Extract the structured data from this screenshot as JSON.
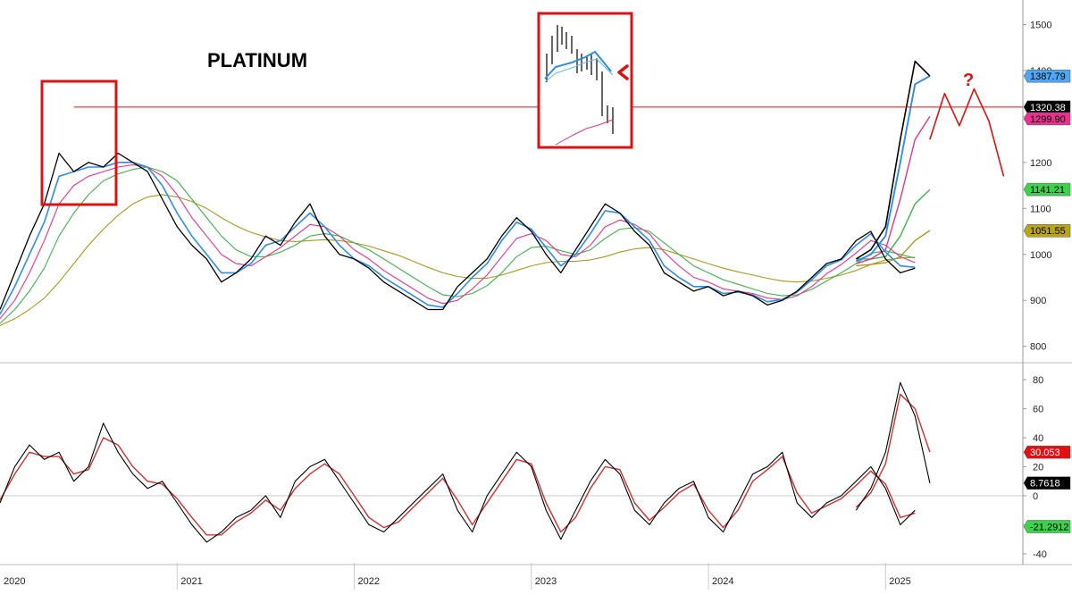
{
  "chart_data": [
    {
      "type": "line",
      "panel": "price",
      "title": "PLATINUM",
      "xlabel": "",
      "ylabel": "",
      "ylim": [
        780,
        1530
      ],
      "x_tick_labels": [
        "2020",
        "2021",
        "2022",
        "2023",
        "2024",
        "2025"
      ],
      "y_tick_labels": [
        "800",
        "900",
        "1000",
        "1100",
        "1200",
        "1300",
        "1400",
        "1500"
      ],
      "grid": false,
      "x": [
        "2020-01",
        "2020-02",
        "2020-03",
        "2020-04",
        "2020-05",
        "2020-06",
        "2020-07",
        "2020-08",
        "2020-09",
        "2020-10",
        "2020-11",
        "2020-12",
        "2021-01",
        "2021-02",
        "2021-03",
        "2021-04",
        "2021-05",
        "2021-06",
        "2021-07",
        "2021-08",
        "2021-09",
        "2021-10",
        "2021-11",
        "2021-12",
        "2022-01",
        "2022-02",
        "2022-03",
        "2022-04",
        "2022-05",
        "2022-06",
        "2022-07",
        "2022-08",
        "2022-09",
        "2022-10",
        "2022-11",
        "2022-12",
        "2023-01",
        "2023-02",
        "2023-03",
        "2023-04",
        "2023-05",
        "2023-06",
        "2023-07",
        "2023-08",
        "2023-09",
        "2023-10",
        "2023-11",
        "2023-12",
        "2024-01",
        "2024-02",
        "2024-03",
        "2024-04",
        "2024-05",
        "2024-06",
        "2024-07",
        "2024-08",
        "2024-09",
        "2024-10",
        "2024-11",
        "2024-12",
        "2025-01",
        "2025-02",
        "2025-03"
      ],
      "series": [
        {
          "color": "#000000",
          "values": [
            880,
            960,
            1040,
            1110,
            1220,
            1180,
            1200,
            1190,
            1220,
            1200,
            1180,
            1120,
            1060,
            1020,
            990,
            940,
            960,
            990,
            1040,
            1020,
            1070,
            1110,
            1040,
            1000,
            990,
            970,
            940,
            920,
            900,
            880,
            880,
            930,
            960,
            990,
            1040,
            1080,
            1050,
            1000,
            960,
            1010,
            1060,
            1110,
            1090,
            1050,
            1020,
            960,
            940,
            920,
            930,
            910,
            920,
            910,
            890,
            900,
            920,
            950,
            980,
            990,
            1030,
            1050,
            990,
            960,
            970
          ]
        },
        {
          "color": "#2e8ee6",
          "values": [
            870,
            930,
            1000,
            1070,
            1170,
            1180,
            1190,
            1190,
            1200,
            1200,
            1190,
            1150,
            1090,
            1040,
            1000,
            960,
            960,
            980,
            1020,
            1030,
            1060,
            1090,
            1060,
            1020,
            990,
            975,
            950,
            930,
            910,
            890,
            885,
            915,
            950,
            980,
            1030,
            1070,
            1055,
            1015,
            975,
            1000,
            1045,
            1095,
            1090,
            1060,
            1030,
            975,
            950,
            930,
            930,
            915,
            918,
            912,
            897,
            902,
            918,
            945,
            975,
            988,
            1020,
            1045,
            1005,
            975,
            972
          ]
        },
        {
          "color": "#e8328c",
          "values": [
            860,
            900,
            960,
            1030,
            1110,
            1150,
            1170,
            1180,
            1190,
            1195,
            1190,
            1170,
            1130,
            1080,
            1040,
            1000,
            980,
            975,
            995,
            1015,
            1040,
            1065,
            1060,
            1040,
            1010,
            990,
            965,
            945,
            925,
            905,
            893,
            900,
            925,
            955,
            995,
            1035,
            1045,
            1030,
            1000,
            995,
            1020,
            1060,
            1075,
            1065,
            1045,
            1005,
            975,
            950,
            940,
            925,
            920,
            915,
            905,
            902,
            910,
            930,
            958,
            978,
            1003,
            1030,
            1020,
            995,
            982
          ]
        },
        {
          "color": "#3cb44b",
          "values": [
            850,
            880,
            920,
            970,
            1040,
            1090,
            1130,
            1160,
            1175,
            1185,
            1190,
            1180,
            1160,
            1120,
            1080,
            1040,
            1010,
            995,
            995,
            1005,
            1020,
            1040,
            1045,
            1040,
            1025,
            1010,
            990,
            970,
            950,
            930,
            912,
            908,
            915,
            932,
            960,
            995,
            1015,
            1018,
            1008,
            1000,
            1010,
            1035,
            1055,
            1058,
            1050,
            1025,
            1000,
            975,
            960,
            945,
            935,
            925,
            915,
            910,
            912,
            924,
            942,
            960,
            980,
            1002,
            1008,
            1000,
            992
          ]
        },
        {
          "color": "#a89a1a",
          "values": [
            845,
            860,
            880,
            905,
            940,
            980,
            1020,
            1055,
            1085,
            1110,
            1125,
            1130,
            1125,
            1115,
            1100,
            1080,
            1062,
            1048,
            1038,
            1030,
            1028,
            1030,
            1032,
            1030,
            1025,
            1018,
            1008,
            998,
            985,
            972,
            960,
            952,
            948,
            948,
            955,
            965,
            975,
            982,
            985,
            985,
            988,
            995,
            1005,
            1012,
            1015,
            1010,
            1000,
            990,
            980,
            970,
            962,
            955,
            948,
            942,
            940,
            942,
            948,
            955,
            965,
            978,
            988,
            992,
            994
          ]
        }
      ],
      "recent_x": [
        "2024-11",
        "2024-12",
        "2025-01",
        "2025-02",
        "2025-03",
        "2025-04"
      ],
      "recent_series": [
        {
          "color": "#000000",
          "values": [
            990,
            1010,
            1060,
            1250,
            1420,
            1388
          ]
        },
        {
          "color": "#2e8ee6",
          "values": [
            985,
            1000,
            1040,
            1200,
            1370,
            1388
          ]
        },
        {
          "color": "#e8328c",
          "values": [
            980,
            990,
            1010,
            1120,
            1250,
            1300
          ]
        },
        {
          "color": "#3cb44b",
          "values": [
            990,
            990,
            995,
            1040,
            1110,
            1141
          ]
        },
        {
          "color": "#a89a1a",
          "values": [
            975,
            978,
            982,
            995,
            1030,
            1052
          ]
        }
      ],
      "reference_line": {
        "value": 1320.38,
        "color": "#e01010"
      },
      "projection": {
        "x": [
          "2025-04",
          "2025-05",
          "2025-06",
          "2025-07",
          "2025-08",
          "2025-09"
        ],
        "values": [
          1250,
          1350,
          1280,
          1360,
          1290,
          1170
        ],
        "color": "#e01010"
      },
      "price_badges": [
        {
          "text": "1387.79",
          "value": 1387.79,
          "bg": "#4fa6f2",
          "fg": "#000000"
        },
        {
          "text": "1320.38",
          "value": 1320.38,
          "bg": "#000000",
          "fg": "#ffffff"
        },
        {
          "text": "1299.90",
          "value": 1299.9,
          "bg": "#e8328c",
          "fg": "#000000"
        },
        {
          "text": "1141.21",
          "value": 1141.21,
          "bg": "#3cd24b",
          "fg": "#000000"
        },
        {
          "text": "1051.55",
          "value": 1051.55,
          "bg": "#b8a61a",
          "fg": "#000000"
        }
      ],
      "annotations": [
        "?"
      ],
      "highlight_color": "#e01010"
    },
    {
      "type": "line",
      "panel": "oscillator",
      "title": "",
      "xlabel": "",
      "ylabel": "",
      "ylim": [
        -45,
        88
      ],
      "y_tick_labels": [
        "80",
        "60",
        "40",
        "20",
        "0",
        "-20",
        "-40"
      ],
      "zero_line": true,
      "x": [
        "2020-01",
        "2020-02",
        "2020-03",
        "2020-04",
        "2020-05",
        "2020-06",
        "2020-07",
        "2020-08",
        "2020-09",
        "2020-10",
        "2020-11",
        "2020-12",
        "2021-01",
        "2021-02",
        "2021-03",
        "2021-04",
        "2021-05",
        "2021-06",
        "2021-07",
        "2021-08",
        "2021-09",
        "2021-10",
        "2021-11",
        "2021-12",
        "2022-01",
        "2022-02",
        "2022-03",
        "2022-04",
        "2022-05",
        "2022-06",
        "2022-07",
        "2022-08",
        "2022-09",
        "2022-10",
        "2022-11",
        "2022-12",
        "2023-01",
        "2023-02",
        "2023-03",
        "2023-04",
        "2023-05",
        "2023-06",
        "2023-07",
        "2023-08",
        "2023-09",
        "2023-10",
        "2023-11",
        "2023-12",
        "2024-01",
        "2024-02",
        "2024-03",
        "2024-04",
        "2024-05",
        "2024-06",
        "2024-07",
        "2024-08",
        "2024-09",
        "2024-10",
        "2024-11",
        "2024-12",
        "2025-01",
        "2025-02",
        "2025-03"
      ],
      "series": [
        {
          "color": "#000000",
          "values": [
            -5,
            20,
            35,
            25,
            30,
            10,
            20,
            50,
            30,
            15,
            5,
            10,
            -5,
            -20,
            -32,
            -25,
            -15,
            -10,
            0,
            -15,
            10,
            20,
            25,
            10,
            -5,
            -20,
            -25,
            -15,
            -5,
            5,
            15,
            -10,
            -25,
            0,
            15,
            30,
            20,
            -10,
            -30,
            -10,
            10,
            25,
            15,
            -10,
            -20,
            -5,
            5,
            10,
            -15,
            -25,
            -5,
            15,
            20,
            30,
            -5,
            -15,
            -5,
            0,
            10,
            20,
            5,
            -20,
            -10
          ]
        },
        {
          "color": "#d03030",
          "values": [
            -3,
            15,
            30,
            27,
            27,
            15,
            18,
            40,
            35,
            20,
            10,
            8,
            -2,
            -15,
            -27,
            -27,
            -18,
            -12,
            -3,
            -10,
            5,
            15,
            22,
            15,
            0,
            -15,
            -22,
            -18,
            -8,
            2,
            12,
            -3,
            -20,
            -5,
            10,
            25,
            22,
            -5,
            -25,
            -15,
            5,
            20,
            18,
            -5,
            -17,
            -8,
            2,
            8,
            -10,
            -22,
            -10,
            10,
            18,
            27,
            2,
            -12,
            -7,
            -2,
            7,
            17,
            8,
            -15,
            -12
          ]
        }
      ],
      "recent_x": [
        "2024-11",
        "2024-12",
        "2025-01",
        "2025-02",
        "2025-03",
        "2025-04"
      ],
      "recent_series": [
        {
          "color": "#000000",
          "values": [
            -10,
            5,
            30,
            78,
            55,
            8.76
          ]
        },
        {
          "color": "#d03030",
          "values": [
            -8,
            2,
            22,
            70,
            60,
            30.05
          ]
        }
      ],
      "badges": [
        {
          "text": "30.053",
          "value": 30.053,
          "bg": "#e01010",
          "fg": "#ffffff"
        },
        {
          "text": "8.7618",
          "value": 8.7618,
          "bg": "#000000",
          "fg": "#ffffff"
        },
        {
          "text": "-21.2912",
          "value": -21.2912,
          "bg": "#3cd24b",
          "fg": "#000000"
        }
      ]
    }
  ]
}
